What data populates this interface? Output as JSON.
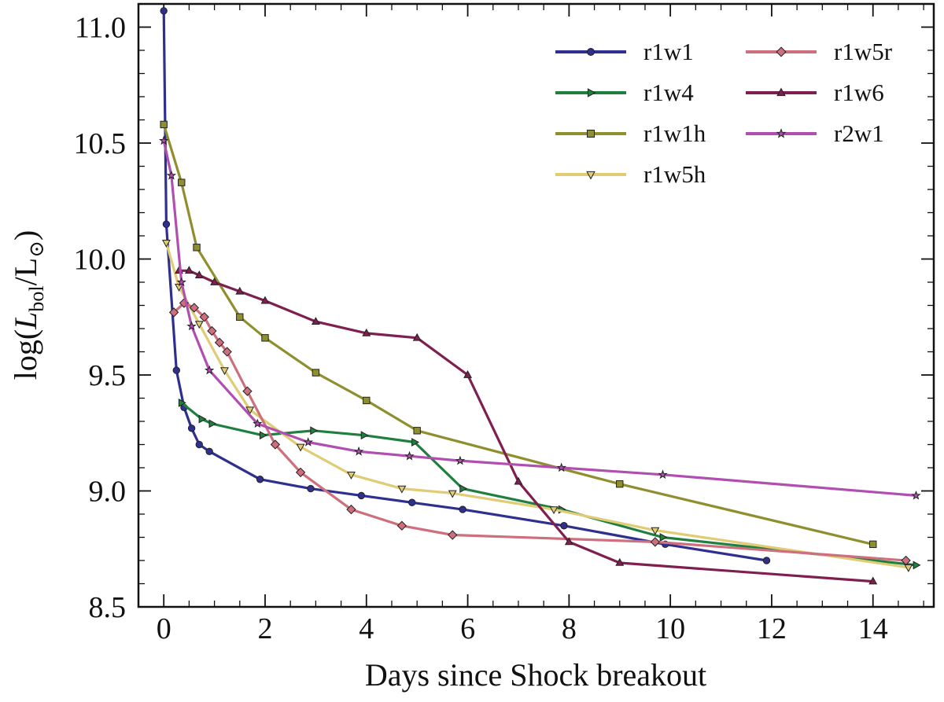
{
  "chart_data": {
    "type": "line",
    "xlabel": "Days since Shock breakout",
    "ylabel": "log(L_bol/L_⊙)",
    "ylabel_parts": {
      "open": "log(",
      "L": "L",
      "bol": "bol",
      "slash": "/L",
      "sun": "⊙",
      "close": ")"
    },
    "xlim": [
      -0.5,
      15.2
    ],
    "ylim": [
      8.5,
      11.1
    ],
    "x_ticks": [
      0,
      2,
      4,
      6,
      8,
      10,
      12,
      14
    ],
    "x_tick_labels": [
      "0",
      "2",
      "4",
      "6",
      "8",
      "10",
      "12",
      "14"
    ],
    "y_ticks": [
      8.5,
      9.0,
      9.5,
      10.0,
      10.5,
      11.0
    ],
    "y_tick_labels": [
      "8.5",
      "9.0",
      "9.5",
      "10.0",
      "10.5",
      "11.0"
    ],
    "legend_position": "top-right",
    "series": [
      {
        "name": "r1w1",
        "color": "#2f2f8f",
        "marker": "circle",
        "x": [
          0.0,
          0.05,
          0.25,
          0.4,
          0.55,
          0.7,
          0.9,
          1.9,
          2.9,
          3.9,
          4.9,
          5.9,
          7.9,
          9.9,
          11.9
        ],
        "y": [
          11.07,
          10.15,
          9.52,
          9.36,
          9.27,
          9.2,
          9.17,
          9.05,
          9.01,
          8.98,
          8.95,
          8.92,
          8.85,
          8.77,
          8.7
        ]
      },
      {
        "name": "r1w4",
        "color": "#1f7f3f",
        "marker": "triangle-right",
        "x": [
          0.35,
          0.75,
          0.95,
          1.95,
          2.95,
          3.95,
          4.95,
          5.9,
          7.85,
          9.85,
          14.85
        ],
        "y": [
          9.38,
          9.31,
          9.29,
          9.24,
          9.26,
          9.24,
          9.21,
          9.01,
          8.92,
          8.8,
          8.68
        ]
      },
      {
        "name": "r1w1h",
        "color": "#8f8f2f",
        "marker": "square",
        "x": [
          0.0,
          0.35,
          0.65,
          1.5,
          2.0,
          3.0,
          4.0,
          5.0,
          9.0,
          14.0
        ],
        "y": [
          10.58,
          10.33,
          10.05,
          9.75,
          9.66,
          9.51,
          9.39,
          9.26,
          9.03,
          8.77
        ]
      },
      {
        "name": "r1w5h",
        "color": "#dfcc74",
        "marker": "triangle-down",
        "x": [
          0.05,
          0.3,
          0.7,
          1.2,
          1.7,
          2.7,
          3.7,
          4.7,
          5.7,
          7.7,
          9.7,
          14.7
        ],
        "y": [
          10.07,
          9.88,
          9.72,
          9.52,
          9.35,
          9.19,
          9.07,
          9.01,
          8.99,
          8.92,
          8.83,
          8.67
        ]
      },
      {
        "name": "r1w5r",
        "color": "#cd6f7d",
        "marker": "diamond",
        "x": [
          0.2,
          0.4,
          0.6,
          0.8,
          0.95,
          1.1,
          1.25,
          1.65,
          2.2,
          2.7,
          3.7,
          4.7,
          5.7,
          9.7,
          14.65
        ],
        "y": [
          9.77,
          9.81,
          9.79,
          9.75,
          9.69,
          9.64,
          9.6,
          9.43,
          9.2,
          9.08,
          8.92,
          8.85,
          8.81,
          8.78,
          8.7
        ]
      },
      {
        "name": "r1w6",
        "color": "#7f1f4f",
        "marker": "triangle-up",
        "x": [
          0.3,
          0.5,
          0.7,
          1.0,
          1.5,
          2.0,
          3.0,
          4.0,
          5.0,
          6.0,
          7.0,
          8.0,
          9.0,
          14.0
        ],
        "y": [
          9.95,
          9.95,
          9.93,
          9.9,
          9.86,
          9.82,
          9.73,
          9.68,
          9.66,
          9.5,
          9.04,
          8.78,
          8.69,
          8.61
        ]
      },
      {
        "name": "r2w1",
        "color": "#b04fb0",
        "marker": "star",
        "x": [
          0.0,
          0.15,
          0.35,
          0.55,
          0.9,
          1.85,
          2.85,
          3.85,
          4.85,
          5.85,
          7.85,
          9.85,
          14.85
        ],
        "y": [
          10.51,
          10.36,
          9.9,
          9.71,
          9.52,
          9.29,
          9.21,
          9.17,
          9.15,
          9.13,
          9.1,
          9.07,
          8.98
        ]
      }
    ]
  }
}
